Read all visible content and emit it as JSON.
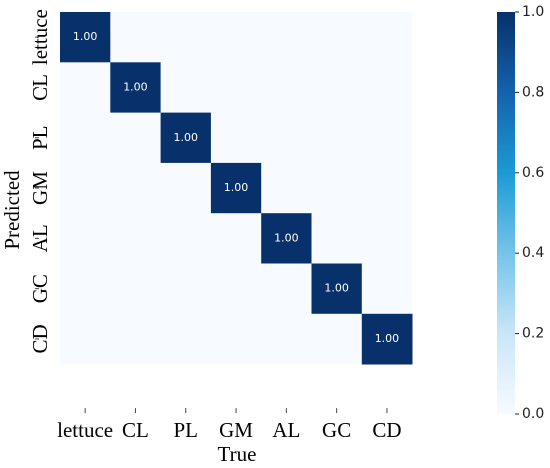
{
  "chart_data": {
    "type": "heatmap",
    "x_label": "True",
    "y_label": "Predicted",
    "x_categories": [
      "lettuce",
      "CL",
      "PL",
      "GM",
      "AL",
      "GC",
      "CD"
    ],
    "y_categories": [
      "lettuce",
      "CL",
      "PL",
      "GM",
      "AL",
      "GC",
      "CD"
    ],
    "values": [
      [
        1,
        0,
        0,
        0,
        0,
        0,
        0
      ],
      [
        0,
        1,
        0,
        0,
        0,
        0,
        0
      ],
      [
        0,
        0,
        1,
        0,
        0,
        0,
        0
      ],
      [
        0,
        0,
        0,
        1,
        0,
        0,
        0
      ],
      [
        0,
        0,
        0,
        0,
        1,
        0,
        0
      ],
      [
        0,
        0,
        0,
        0,
        0,
        1,
        0
      ],
      [
        0,
        0,
        0,
        0,
        0,
        0,
        1
      ]
    ],
    "value_labels": [
      [
        "1.00",
        null,
        null,
        null,
        null,
        null,
        null
      ],
      [
        null,
        "1.00",
        null,
        null,
        null,
        null,
        null
      ],
      [
        null,
        null,
        "1.00",
        null,
        null,
        null,
        null
      ],
      [
        null,
        null,
        null,
        "1.00",
        null,
        null,
        null
      ],
      [
        null,
        null,
        null,
        null,
        "1.00",
        null,
        null
      ],
      [
        null,
        null,
        null,
        null,
        null,
        "1.00",
        null
      ],
      [
        null,
        null,
        null,
        null,
        null,
        null,
        "1.00"
      ]
    ],
    "colormap": [
      "#f7fbff",
      "#c9e6f7",
      "#74c4ea",
      "#1c9ad6",
      "#1462ad",
      "#08306b"
    ],
    "clim": [
      0,
      1
    ],
    "cticks": [
      {
        "value": 0,
        "label": "0.0"
      },
      {
        "value": 0.2,
        "label": "0.2"
      },
      {
        "value": 0.4,
        "label": "0.4"
      },
      {
        "value": 0.6,
        "label": "0.6"
      },
      {
        "value": 0.8,
        "label": "0.8"
      },
      {
        "value": 1,
        "label": "1.0"
      }
    ]
  }
}
